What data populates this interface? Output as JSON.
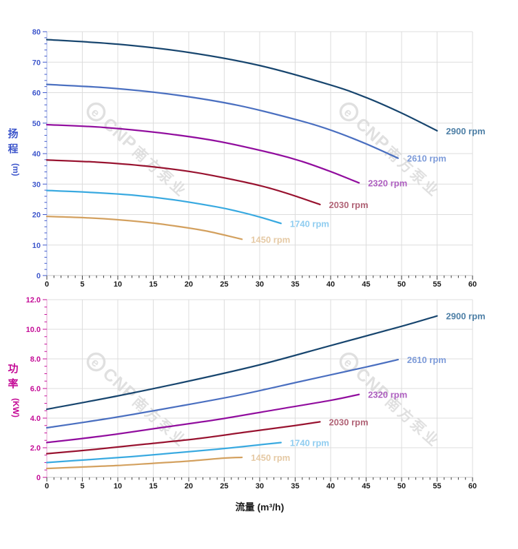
{
  "page": {
    "background": "#ffffff"
  },
  "watermark": {
    "logo_letter": "e",
    "brand": "CNP",
    "brand_cjk": "南方泵业",
    "color": "#d9d9d9"
  },
  "chart_data": [
    {
      "type": "line",
      "id": "head-curves",
      "title": "",
      "xlabel": "",
      "ylabel": "扬程 (m)",
      "ylabel_cjk": [
        "扬",
        "程"
      ],
      "ylabel_unit": "(m)",
      "axis_color": "#3c55cb",
      "axis_line_color": "#b7c3ec",
      "xlim": [
        0,
        60
      ],
      "ylim": [
        0,
        80
      ],
      "xtick_step": 5,
      "xminor_step": 1,
      "ytick_step": 10,
      "yminor_step": 2,
      "xtick_labels": [
        "0",
        "5",
        "10",
        "15",
        "20",
        "25",
        "30",
        "35",
        "40",
        "45",
        "50",
        "55",
        "60"
      ],
      "ytick_labels": [
        "0",
        "10",
        "20",
        "30",
        "40",
        "50",
        "60",
        "70",
        "80"
      ],
      "grid": true,
      "legend_position": "curve-end-right",
      "series": [
        {
          "name": "2900 rpm",
          "color": "#17456e",
          "label_color": "#4d7fa6",
          "points": [
            [
              0,
              77.4
            ],
            [
              10,
              75.9
            ],
            [
              20,
              73.2
            ],
            [
              30,
              68.9
            ],
            [
              40,
              62.5
            ],
            [
              45,
              58.4
            ],
            [
              50,
              53.3
            ],
            [
              55,
              47.5
            ]
          ]
        },
        {
          "name": "2610 rpm",
          "color": "#4a6fc0",
          "label_color": "#7d9bd9",
          "points": [
            [
              0,
              62.7
            ],
            [
              9,
              61.5
            ],
            [
              18,
              59.3
            ],
            [
              27,
              55.8
            ],
            [
              36,
              50.6
            ],
            [
              40.5,
              47.3
            ],
            [
              45,
              43.2
            ],
            [
              49.5,
              38.5
            ]
          ]
        },
        {
          "name": "2320 rpm",
          "color": "#910d9e",
          "label_color": "#ae5fc0",
          "points": [
            [
              0,
              49.5
            ],
            [
              8,
              48.6
            ],
            [
              16,
              46.8
            ],
            [
              24,
              44.1
            ],
            [
              32,
              40.0
            ],
            [
              36,
              37.4
            ],
            [
              40,
              34.1
            ],
            [
              44,
              30.4
            ]
          ]
        },
        {
          "name": "2030 rpm",
          "color": "#98122f",
          "label_color": "#b16376",
          "points": [
            [
              0,
              37.9
            ],
            [
              7,
              37.2
            ],
            [
              14,
              35.9
            ],
            [
              21,
              33.8
            ],
            [
              28,
              30.6
            ],
            [
              31.5,
              28.6
            ],
            [
              35,
              26.1
            ],
            [
              38.5,
              23.3
            ]
          ]
        },
        {
          "name": "1740 rpm",
          "color": "#38a9e0",
          "label_color": "#90cdf0",
          "points": [
            [
              0,
              27.9
            ],
            [
              6,
              27.3
            ],
            [
              12,
              26.4
            ],
            [
              18,
              24.8
            ],
            [
              24,
              22.5
            ],
            [
              27,
              21.0
            ],
            [
              30,
              19.2
            ],
            [
              33,
              17.1
            ]
          ]
        },
        {
          "name": "1450 rpm",
          "color": "#d3a05e",
          "label_color": "#e5c9a4",
          "points": [
            [
              0,
              19.4
            ],
            [
              5,
              19.0
            ],
            [
              10,
              18.3
            ],
            [
              15,
              17.2
            ],
            [
              20,
              15.6
            ],
            [
              22.5,
              14.6
            ],
            [
              25,
              13.3
            ],
            [
              27.5,
              11.9
            ]
          ]
        }
      ]
    },
    {
      "type": "line",
      "id": "power-curves",
      "title": "",
      "xlabel": "流量 (m³/h)",
      "ylabel": "功率 (KW)",
      "ylabel_cjk": [
        "功",
        "率"
      ],
      "ylabel_unit": "(KW)",
      "axis_color": "#c40a96",
      "axis_line_color": "#eab7dc",
      "xlim": [
        0,
        60
      ],
      "ylim": [
        0,
        12
      ],
      "xtick_step": 5,
      "xminor_step": 1,
      "ytick_step": 2,
      "yminor_step": 0.5,
      "xtick_labels": [
        "0",
        "5",
        "10",
        "15",
        "20",
        "25",
        "30",
        "35",
        "40",
        "45",
        "50",
        "55",
        "60"
      ],
      "ytick_labels": [
        "0",
        "2.0",
        "4.0",
        "6.0",
        "8.0",
        "10.0",
        "12.0"
      ],
      "grid": true,
      "legend_position": "curve-end-right",
      "series": [
        {
          "name": "2900 rpm",
          "color": "#17456e",
          "label_color": "#4d7fa6",
          "points": [
            [
              0,
              4.6
            ],
            [
              10,
              5.5
            ],
            [
              20,
              6.5
            ],
            [
              30,
              7.6
            ],
            [
              40,
              8.9
            ],
            [
              50,
              10.2
            ],
            [
              55,
              10.9
            ]
          ]
        },
        {
          "name": "2610 rpm",
          "color": "#4a6fc0",
          "label_color": "#7d9bd9",
          "points": [
            [
              0,
              3.35
            ],
            [
              9,
              4.0
            ],
            [
              18,
              4.75
            ],
            [
              27,
              5.55
            ],
            [
              36,
              6.5
            ],
            [
              45,
              7.45
            ],
            [
              49.5,
              7.95
            ]
          ]
        },
        {
          "name": "2320 rpm",
          "color": "#910d9e",
          "label_color": "#ae5fc0",
          "points": [
            [
              0,
              2.35
            ],
            [
              8,
              2.8
            ],
            [
              16,
              3.35
            ],
            [
              24,
              3.9
            ],
            [
              32,
              4.55
            ],
            [
              40,
              5.2
            ],
            [
              44,
              5.6
            ]
          ]
        },
        {
          "name": "2030 rpm",
          "color": "#98122f",
          "label_color": "#b16376",
          "points": [
            [
              0,
              1.6
            ],
            [
              7,
              1.9
            ],
            [
              14,
              2.25
            ],
            [
              21,
              2.6
            ],
            [
              28,
              3.05
            ],
            [
              35,
              3.5
            ],
            [
              38.5,
              3.75
            ]
          ]
        },
        {
          "name": "1740 rpm",
          "color": "#38a9e0",
          "label_color": "#90cdf0",
          "points": [
            [
              0,
              1.0
            ],
            [
              6,
              1.2
            ],
            [
              12,
              1.4
            ],
            [
              18,
              1.65
            ],
            [
              24,
              1.9
            ],
            [
              30,
              2.2
            ],
            [
              33,
              2.35
            ]
          ]
        },
        {
          "name": "1450 rpm",
          "color": "#d3a05e",
          "label_color": "#e5c9a4",
          "points": [
            [
              0,
              0.6
            ],
            [
              5,
              0.7
            ],
            [
              10,
              0.8
            ],
            [
              15,
              0.95
            ],
            [
              20,
              1.1
            ],
            [
              25,
              1.3
            ],
            [
              27.5,
              1.35
            ]
          ]
        }
      ]
    }
  ],
  "style": {
    "grid_color": "#dcdcdc",
    "x_axis_line_color": "#c9c9c9",
    "x_tick_color": "#3a3a3a",
    "x_label_color": "#1a1a1a"
  }
}
